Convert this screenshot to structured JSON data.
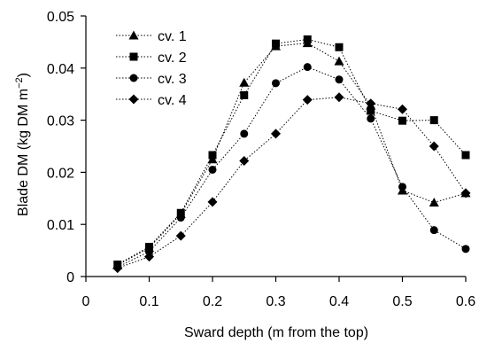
{
  "chart_data": {
    "type": "line",
    "xlabel": "Sward depth (m from the top)",
    "ylabel_main": "Blade DM (kg DM m",
    "ylabel_sup": "−2",
    "ylabel_end": ")",
    "xlim": [
      0,
      0.6
    ],
    "ylim": [
      0,
      0.05
    ],
    "x_ticks": [
      0,
      0.1,
      0.2,
      0.3,
      0.4,
      0.5,
      0.6
    ],
    "x_tick_labels": [
      "0",
      "0.1",
      "0.2",
      "0.3",
      "0.4",
      "0.5",
      "0.6"
    ],
    "y_ticks": [
      0,
      0.01,
      0.02,
      0.03,
      0.04,
      0.05
    ],
    "y_tick_labels": [
      "0",
      "0.01",
      "0.02",
      "0.03",
      "0.04",
      "0.05"
    ],
    "grid": false,
    "legend_position": "top-left",
    "line_style": "dotted",
    "series": [
      {
        "name": "cv. 1",
        "marker": "triangle",
        "x": [
          0.05,
          0.1,
          0.15,
          0.2,
          0.25,
          0.3,
          0.35,
          0.4,
          0.45,
          0.5,
          0.55,
          0.6
        ],
        "y": [
          0.0022,
          0.0055,
          0.012,
          0.0225,
          0.0372,
          0.0442,
          0.0448,
          0.0413,
          0.0328,
          0.0165,
          0.0142,
          0.016
        ]
      },
      {
        "name": "cv. 2",
        "marker": "square",
        "x": [
          0.05,
          0.1,
          0.15,
          0.2,
          0.25,
          0.3,
          0.35,
          0.4,
          0.45,
          0.5,
          0.55,
          0.6
        ],
        "y": [
          0.0023,
          0.0057,
          0.0122,
          0.0233,
          0.0348,
          0.0447,
          0.0455,
          0.044,
          0.0318,
          0.0299,
          0.03,
          0.0233
        ]
      },
      {
        "name": "cv. 3",
        "marker": "circle",
        "x": [
          0.05,
          0.1,
          0.15,
          0.2,
          0.25,
          0.3,
          0.35,
          0.4,
          0.45,
          0.5,
          0.55,
          0.6
        ],
        "y": [
          0.0018,
          0.0048,
          0.0113,
          0.0205,
          0.0274,
          0.0371,
          0.0402,
          0.0378,
          0.0303,
          0.0172,
          0.0089,
          0.0053
        ]
      },
      {
        "name": "cv. 4",
        "marker": "diamond",
        "x": [
          0.05,
          0.1,
          0.15,
          0.2,
          0.25,
          0.3,
          0.35,
          0.4,
          0.45,
          0.5,
          0.55,
          0.6
        ],
        "y": [
          0.0016,
          0.0038,
          0.0078,
          0.0143,
          0.0222,
          0.0274,
          0.0339,
          0.0344,
          0.0332,
          0.0321,
          0.025,
          0.016
        ]
      }
    ]
  }
}
